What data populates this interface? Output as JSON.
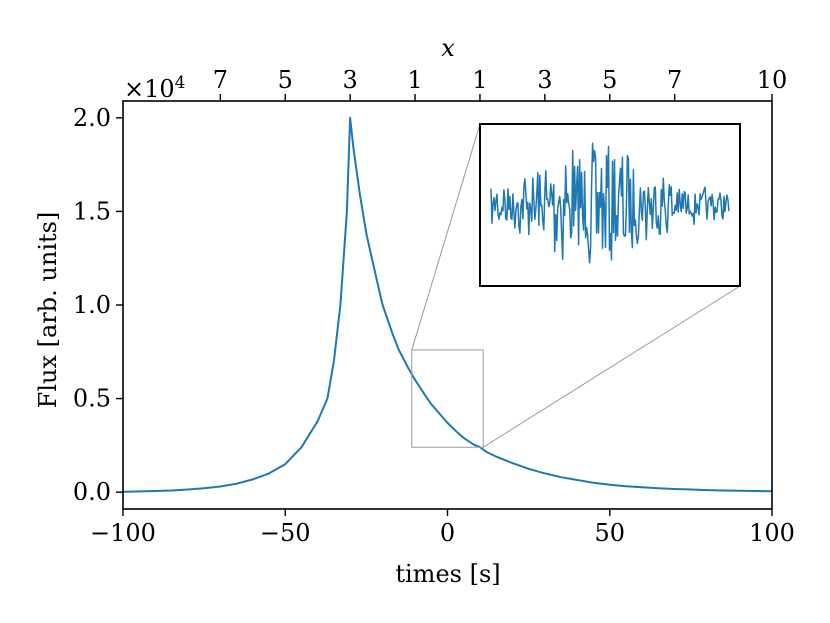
{
  "chart_data": {
    "type": "line",
    "xlabel": "times [s]",
    "ylabel": "Flux [arb. units]",
    "top_xlabel": "x",
    "xlim": [
      -100,
      100
    ],
    "ylim": [
      -0.09,
      2.09
    ],
    "y_offset_label": "×10",
    "y_offset_exponent": "4",
    "x_ticks": [
      {
        "value": -100,
        "label": "−100"
      },
      {
        "value": -50,
        "label": "−50"
      },
      {
        "value": 0,
        "label": "0"
      },
      {
        "value": 50,
        "label": "50"
      },
      {
        "value": 100,
        "label": "100"
      }
    ],
    "y_ticks": [
      {
        "value": 0.0,
        "label": "0.0"
      },
      {
        "value": 0.5,
        "label": "0.5"
      },
      {
        "value": 1.0,
        "label": "1.0"
      },
      {
        "value": 1.5,
        "label": "1.5"
      },
      {
        "value": 2.0,
        "label": "2.0"
      }
    ],
    "top_ticks": [
      {
        "value": -70,
        "label": "7"
      },
      {
        "value": -50,
        "label": "5"
      },
      {
        "value": -30,
        "label": "3"
      },
      {
        "value": -10,
        "label": "1"
      },
      {
        "value": 10,
        "label": "1"
      },
      {
        "value": 30,
        "label": "3"
      },
      {
        "value": 50,
        "label": "5"
      },
      {
        "value": 70,
        "label": "7"
      },
      {
        "value": 100,
        "label": "10"
      }
    ],
    "series": [
      {
        "color": "#1f77b4",
        "x": [
          -100,
          -95,
          -90,
          -85,
          -80,
          -75,
          -70,
          -65,
          -60,
          -55,
          -50,
          -45,
          -40,
          -37,
          -35,
          -33,
          -31,
          -30,
          -29,
          -27,
          -25,
          -22,
          -20,
          -17,
          -15,
          -12,
          -10,
          -7,
          -5,
          -2,
          0,
          3,
          5,
          8,
          10,
          12,
          15,
          20,
          25,
          30,
          35,
          40,
          45,
          50,
          55,
          60,
          65,
          70,
          75,
          80,
          85,
          90,
          95,
          100
        ],
        "y": [
          0.002,
          0.004,
          0.006,
          0.009,
          0.014,
          0.021,
          0.03,
          0.045,
          0.068,
          0.1,
          0.15,
          0.24,
          0.38,
          0.5,
          0.7,
          1.0,
          1.5,
          2.0,
          1.84,
          1.59,
          1.38,
          1.15,
          1.0,
          0.85,
          0.76,
          0.66,
          0.6,
          0.52,
          0.47,
          0.41,
          0.37,
          0.32,
          0.29,
          0.255,
          0.24,
          0.215,
          0.19,
          0.155,
          0.125,
          0.1,
          0.08,
          0.065,
          0.05,
          0.04,
          0.032,
          0.026,
          0.021,
          0.017,
          0.014,
          0.011,
          0.009,
          0.007,
          0.006,
          0.005
        ]
      }
    ],
    "zoom_region": {
      "x": [
        -11,
        11
      ],
      "y": [
        0.24,
        0.76
      ]
    },
    "inset": {
      "color": "#1f77b4",
      "samples": 240
    }
  }
}
